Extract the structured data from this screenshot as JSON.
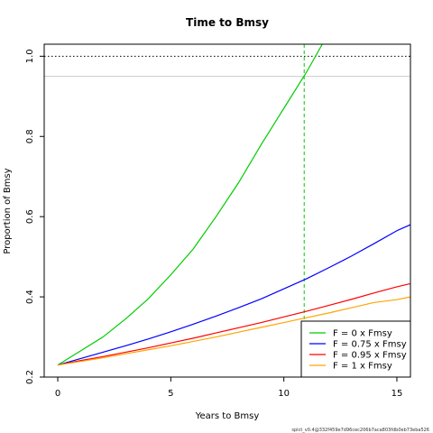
{
  "chart_data": {
    "type": "line",
    "title": "Time to Bmsy",
    "xlabel": "Years to Bmsy",
    "ylabel": "Proportion of Bmsy",
    "xlim": [
      -0.6,
      15.6
    ],
    "ylim": [
      0.2,
      1.03
    ],
    "xticks": [
      0,
      5,
      10,
      15
    ],
    "yticks": [
      0.2,
      0.4,
      0.6,
      0.8,
      1.0
    ],
    "ytick_labels": [
      "0.2",
      "0.4",
      "0.6",
      "0.8",
      "1.0"
    ],
    "grid": false,
    "legend_position": "bottom-right",
    "series": [
      {
        "name": "F = 0 x Fmsy",
        "color": "#00cc00",
        "x": [
          0,
          1,
          2,
          3,
          4,
          5,
          6,
          7,
          8,
          9,
          10,
          11,
          11.7
        ],
        "y": [
          0.23,
          0.265,
          0.3,
          0.345,
          0.395,
          0.455,
          0.52,
          0.6,
          0.685,
          0.78,
          0.87,
          0.96,
          1.03
        ]
      },
      {
        "name": "F = 0.75 x Fmsy",
        "color": "#0000ff",
        "x": [
          0,
          1,
          2,
          3,
          4,
          5,
          6,
          7,
          8,
          9,
          10,
          11,
          12,
          13,
          14,
          15,
          15.6
        ],
        "y": [
          0.23,
          0.246,
          0.262,
          0.278,
          0.295,
          0.313,
          0.332,
          0.352,
          0.373,
          0.395,
          0.42,
          0.445,
          0.473,
          0.502,
          0.533,
          0.565,
          0.58
        ]
      },
      {
        "name": "F = 0.95 x Fmsy",
        "color": "#ff0000",
        "x": [
          0,
          1,
          2,
          3,
          4,
          5,
          6,
          7,
          8,
          9,
          10,
          11,
          12,
          13,
          14,
          15,
          15.6
        ],
        "y": [
          0.23,
          0.241,
          0.251,
          0.262,
          0.273,
          0.285,
          0.297,
          0.31,
          0.323,
          0.336,
          0.35,
          0.364,
          0.379,
          0.394,
          0.41,
          0.425,
          0.433
        ]
      },
      {
        "name": "F = 1 x Fmsy",
        "color": "#ffa500",
        "x": [
          0,
          1,
          2,
          3,
          4,
          5,
          6,
          7,
          8,
          9,
          10,
          11,
          12,
          13,
          14,
          15,
          15.6
        ],
        "y": [
          0.23,
          0.239,
          0.248,
          0.258,
          0.268,
          0.278,
          0.289,
          0.3,
          0.312,
          0.324,
          0.336,
          0.348,
          0.36,
          0.373,
          0.386,
          0.393,
          0.4
        ]
      }
    ],
    "reference_lines": [
      {
        "kind": "horizontal",
        "y": 1.0,
        "style": "dotted",
        "color": "#000000"
      },
      {
        "kind": "horizontal",
        "y": 0.95,
        "style": "solid",
        "color": "#cccccc"
      },
      {
        "kind": "vertical",
        "x": 10.9,
        "style": "dashed",
        "color": "#00cc00"
      }
    ],
    "footnote": "spict_v0.4@332f459e7d96cec206b7aca803fdb0eb73eba526"
  }
}
